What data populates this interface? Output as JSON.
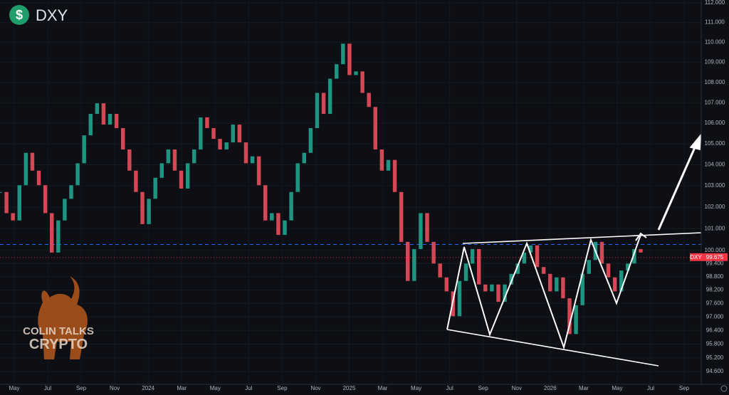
{
  "header": {
    "symbol": "DXY"
  },
  "watermark": {
    "line1": "COLIN TALKS",
    "line2": "CRYPTO"
  },
  "chart_data": {
    "type": "candlestick",
    "values": [
      102.71,
      101.72,
      101.38,
      103.03,
      104.57,
      103.72,
      103.03,
      101.72,
      99.9,
      101.38,
      102.39,
      103.03,
      104.07,
      105.41,
      106.45,
      106.97,
      105.93,
      106.45,
      105.76,
      104.73,
      103.72,
      102.71,
      101.21,
      102.39,
      103.38,
      104.07,
      104.73,
      103.72,
      102.87,
      104.07,
      104.73,
      106.28,
      105.76,
      105.24,
      104.73,
      105.07,
      105.93,
      105.07,
      104.07,
      104.4,
      103.03,
      101.38,
      101.72,
      100.71,
      101.38,
      102.71,
      104.07,
      104.57,
      105.76,
      107.48,
      106.45,
      108.18,
      108.9,
      109.93,
      108.36,
      108.54,
      107.48,
      106.79,
      104.73,
      103.72,
      104.23,
      102.71,
      100.39,
      98.61,
      100.06,
      101.72,
      100.39,
      99.4,
      98.77,
      98.14,
      97.03,
      98.61,
      99.4,
      100.06,
      98.45,
      98.14,
      98.45,
      97.67,
      98.45,
      98.93,
      99.4,
      99.9,
      100.23,
      99.24,
      98.93,
      98.14,
      98.77,
      97.83,
      96.24,
      97.52,
      98.93,
      99.56,
      100.39,
      99.4,
      98.77,
      98.14,
      99.08,
      99.4,
      100.06,
      99.9
    ],
    "up_color": "#22ab94",
    "down_color": "#f7525f",
    "log_scale": true,
    "ylim": [
      94.05,
      112.15
    ],
    "yticks": [
      {
        "value": 94.6,
        "label": "94.600"
      },
      {
        "value": 95.2,
        "label": "95.200"
      },
      {
        "value": 95.8,
        "label": "95.800"
      },
      {
        "value": 96.4,
        "label": "96.400"
      },
      {
        "value": 97,
        "label": "97.000"
      },
      {
        "value": 97.6,
        "label": "97.600"
      },
      {
        "value": 98.2,
        "label": "98.200"
      },
      {
        "value": 98.8,
        "label": "98.800"
      },
      {
        "value": 99.4,
        "label": "99.400"
      },
      {
        "value": 100,
        "label": "100.000"
      },
      {
        "value": 101,
        "label": "101.000"
      },
      {
        "value": 102,
        "label": "102.000"
      },
      {
        "value": 103,
        "label": "103.000"
      },
      {
        "value": 104,
        "label": "104.000"
      },
      {
        "value": 105,
        "label": "105.000"
      },
      {
        "value": 106,
        "label": "106.000"
      },
      {
        "value": 107,
        "label": "107.000"
      },
      {
        "value": 108,
        "label": "108.000"
      },
      {
        "value": 109,
        "label": "109.000"
      },
      {
        "value": 110,
        "label": "110.000"
      },
      {
        "value": 111,
        "label": "111.000"
      },
      {
        "value": 112,
        "label": "112.000"
      }
    ],
    "x_labels": [
      "May",
      "Jul",
      "Sep",
      "Nov",
      "2024",
      "Mar",
      "May",
      "Jul",
      "Sep",
      "Nov",
      "2025",
      "Mar",
      "May",
      "Jul",
      "Sep",
      "Nov",
      "2026",
      "Mar",
      "May",
      "Jul",
      "Sep"
    ],
    "reference_line": {
      "value": 100.27,
      "color": "#2962ff"
    },
    "last_price": {
      "symbol": "DXY",
      "value": 99.675,
      "color": "#f23645"
    }
  }
}
